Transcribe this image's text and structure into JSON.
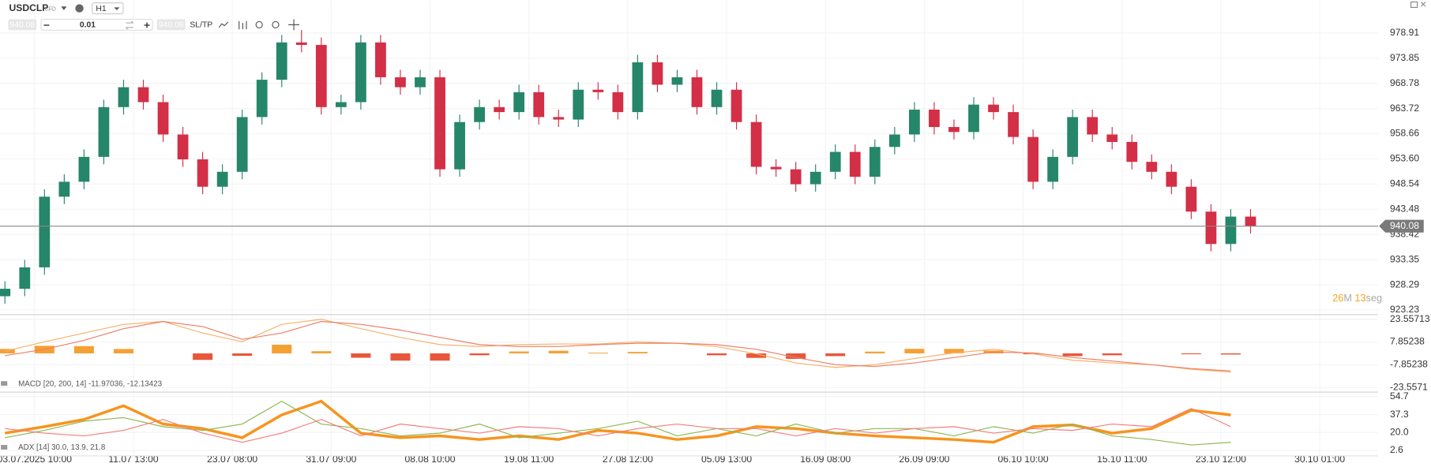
{
  "toolbar": {
    "symbol": "USDCLP",
    "instrument_type": "CFD",
    "timeframe": "H1",
    "sell_price": "940.08",
    "quantity": "0.01",
    "buy_price": "940.08",
    "sltp": "SL/TP"
  },
  "chart_data": [
    {
      "type": "candlestick",
      "x": [
        -3,
        -1,
        1,
        3,
        5,
        7,
        9,
        11,
        13,
        15,
        17,
        19,
        21,
        23,
        25,
        27,
        29,
        31,
        33,
        35,
        37,
        39,
        41,
        43,
        45,
        47,
        49,
        51,
        53,
        55,
        57,
        59,
        61,
        63,
        65,
        67,
        69,
        71,
        73,
        75,
        77,
        79,
        81,
        83,
        85,
        87,
        89,
        91,
        93,
        95,
        97,
        99,
        101,
        103,
        105,
        107,
        109,
        111,
        113,
        115,
        117,
        119,
        121,
        123
      ],
      "open": [
        926,
        927.5,
        931.8,
        946,
        949,
        954,
        964,
        968,
        965,
        958.5,
        953.5,
        948,
        951,
        962,
        969.5,
        977,
        976.5,
        964,
        965,
        977,
        970,
        968,
        970,
        951.5,
        961,
        964,
        963,
        967,
        962,
        961.5,
        967.5,
        967,
        963,
        973,
        968.5,
        970,
        964,
        967.5,
        961,
        952,
        951.5,
        948.5,
        951,
        955,
        950,
        956,
        958.5,
        963.5,
        960,
        959,
        964.5,
        963,
        958,
        949,
        954,
        962,
        958.5,
        957,
        953,
        951,
        948,
        943,
        936.5,
        942
      ],
      "high": [
        929,
        933.3,
        947.5,
        950.5,
        955.5,
        965.5,
        969.5,
        969.5,
        966.5,
        960,
        955,
        952.5,
        963.5,
        971,
        978.5,
        979.5,
        978,
        966.5,
        978.5,
        978.5,
        971.5,
        971.5,
        971.5,
        962.5,
        965.5,
        965.5,
        968.5,
        968.5,
        963.5,
        969,
        969,
        968.5,
        974.5,
        974.5,
        971.5,
        971.5,
        969,
        969,
        962.5,
        953.5,
        953,
        952.5,
        956.5,
        956.5,
        957.5,
        960,
        965,
        965,
        961.5,
        966,
        966,
        964.5,
        959.5,
        955.5,
        963.5,
        963.5,
        960,
        958.5,
        954.5,
        952.5,
        949.5,
        944.5,
        943.5,
        943.5
      ],
      "low": [
        924.5,
        926,
        930.3,
        944.5,
        947.5,
        952.5,
        962.5,
        963.5,
        957,
        952,
        946.5,
        946.5,
        949.5,
        960.5,
        968,
        975,
        962.5,
        962.5,
        963.5,
        968.5,
        966.5,
        966.5,
        950,
        950,
        959.5,
        961.5,
        961.5,
        960.5,
        960,
        960,
        965.5,
        961.5,
        961.5,
        967,
        967,
        962.5,
        962.5,
        959.5,
        950.5,
        950,
        947,
        947,
        949.5,
        948.5,
        948.5,
        954.5,
        957,
        958.5,
        957.5,
        957.5,
        961.5,
        956.5,
        947.5,
        947.5,
        952.5,
        957,
        955.5,
        951.5,
        949.5,
        946.5,
        941.5,
        935,
        935,
        938.6
      ],
      "close": [
        927.5,
        931.8,
        946,
        949,
        954,
        964,
        968,
        965,
        958.5,
        953.5,
        948,
        951,
        962,
        969.5,
        977,
        976.5,
        964,
        965,
        977,
        970,
        968,
        970,
        951.5,
        961,
        964,
        963,
        967,
        962,
        961.5,
        967.5,
        967,
        963,
        973,
        968.5,
        970,
        964,
        967.5,
        961,
        952,
        951.5,
        948.5,
        951,
        955,
        950,
        956,
        958.5,
        963.5,
        960,
        959,
        964.5,
        963,
        958,
        949,
        954,
        962,
        958.5,
        957,
        953,
        951,
        948,
        943,
        936.5,
        942,
        940.08
      ],
      "up_color": "#26866a",
      "down_color": "#d32f46",
      "ylim": [
        922.3,
        985.5
      ],
      "yticks": [
        923.23,
        928.29,
        933.35,
        938.42,
        943.48,
        948.54,
        {
          "value": 953.6,
          "label": "953.60"
        },
        958.66,
        963.72,
        968.78,
        973.85,
        978.91
      ],
      "xlim": [
        -3.5,
        135.9
      ],
      "xticks": [
        {
          "value": 0,
          "label": "03.07.2025 10:00"
        },
        {
          "value": 10,
          "label": "11.07 13:00"
        },
        {
          "value": 20,
          "label": "23.07 08:00"
        },
        {
          "value": 30,
          "label": "31.07 09:00"
        },
        {
          "value": 40,
          "label": "08.08 10:00"
        },
        {
          "value": 50,
          "label": "19.08 11:00"
        },
        {
          "value": 60,
          "label": "27.08 12:00"
        },
        {
          "value": 70,
          "label": "05.09 13:00"
        },
        {
          "value": 80,
          "label": "16.09 08:00"
        },
        {
          "value": 90,
          "label": "26.09 09:00"
        },
        {
          "value": 100,
          "label": "06.10 10:00"
        },
        {
          "value": 110,
          "label": "15.10 11:00"
        },
        {
          "value": 120,
          "label": "23.10 12:00"
        },
        {
          "value": 130,
          "label": "30.10 01:00"
        }
      ],
      "grid": true,
      "last_price": 940.08,
      "countdown": {
        "minutes": "26",
        "minutes_unit": "M",
        "seconds": "13",
        "seconds_unit": "seg"
      }
    },
    {
      "type": "macd",
      "title": "MACD [20, 200, 14] -11.97036, -12.13423",
      "x": [
        -3,
        1,
        5,
        9,
        13,
        17,
        21,
        25,
        29,
        33,
        37,
        41,
        45,
        49,
        53,
        57,
        61,
        65,
        69,
        73,
        77,
        81,
        85,
        89,
        93,
        97,
        101,
        105,
        109,
        113,
        117,
        121
      ],
      "histogram": {
        "values": [
          3.1,
          5.2,
          5,
          3,
          0,
          -4.5,
          -1.7,
          6,
          1.5,
          -3,
          -5,
          -5,
          -1.3,
          1.3,
          1.8,
          0.5,
          1,
          0,
          -1.3,
          -3.1,
          -3.8,
          -1.9,
          1.2,
          3.1,
          3.1,
          1.9,
          -0.6,
          -1.9,
          -1.3,
          0,
          -0.6,
          -0.8
        ],
        "positive_color": "#f5a033",
        "negative_color": "#e8573a"
      },
      "series": [
        {
          "color": "#f7b26a",
          "values": [
            1.5,
            8,
            14,
            20,
            22,
            14,
            8,
            20,
            23.5,
            17,
            11,
            6,
            4.7,
            6,
            6.5,
            6.5,
            8,
            7,
            4.7,
            -0.3,
            -6.6,
            -9.7,
            -7.8,
            -3.5,
            0.3,
            2.8,
            -0.3,
            -4.7,
            -6.6,
            -7.8,
            -11,
            -12.9
          ]
        },
        {
          "color": "#ee7e66",
          "values": [
            -1.6,
            2.8,
            9,
            17,
            22,
            18.5,
            9.7,
            14,
            22,
            20,
            16,
            11,
            6,
            4.7,
            4.7,
            6,
            7,
            7,
            6,
            2.8,
            -2.8,
            -7.8,
            -9,
            -6.6,
            -2.8,
            0.9,
            0.3,
            -2.8,
            -5.3,
            -7.8,
            -10.4,
            -12.1
          ]
        }
      ],
      "ylim": [
        -26.7,
        26.7
      ],
      "yticks": [
        {
          "value": -23.55713,
          "label": "-23.5571"
        },
        -7.85238,
        7.85238,
        23.55713
      ]
    },
    {
      "type": "line",
      "title": "ADX [14] 30.0, 13.9, 21.8",
      "x": [
        -3,
        1,
        5,
        9,
        13,
        17,
        21,
        25,
        29,
        33,
        37,
        41,
        45,
        49,
        53,
        57,
        61,
        65,
        69,
        73,
        77,
        81,
        85,
        89,
        93,
        97,
        101,
        105,
        109,
        113,
        117,
        121
      ],
      "series": [
        {
          "color": "#f7941d",
          "width": 3,
          "values": [
            19.4,
            25.6,
            32.6,
            45.9,
            28.2,
            23.8,
            15,
            37,
            50.3,
            19.4,
            15,
            16.7,
            13.2,
            16.7,
            13.2,
            22,
            19.4,
            13.2,
            16.7,
            25.6,
            23.8,
            19.4,
            16.7,
            15,
            13.2,
            10.5,
            25.6,
            27.3,
            19.4,
            23.8,
            41.5,
            37
          ]
        },
        {
          "color": "#8cb850",
          "width": 1,
          "values": [
            15,
            22,
            30.9,
            34.4,
            25.6,
            22,
            28.2,
            50.3,
            28.2,
            23.8,
            16.7,
            19.4,
            28.2,
            15,
            19.4,
            23.8,
            30.9,
            16.7,
            23.8,
            16.7,
            28.2,
            19.4,
            23.8,
            23.8,
            16.7,
            25.6,
            19.4,
            28.2,
            16.7,
            13.2,
            7.9,
            10.5
          ]
        },
        {
          "color": "#f47c7c",
          "width": 1,
          "values": [
            23.8,
            19.4,
            16.7,
            22,
            32.6,
            19.4,
            10.5,
            19.4,
            32.6,
            16.7,
            28.2,
            23.8,
            19.4,
            25.6,
            23.8,
            16.7,
            23.8,
            28.2,
            23.8,
            23.8,
            16.7,
            23.8,
            19.4,
            23.8,
            25.6,
            19.4,
            23.8,
            22,
            28.2,
            25.6,
            43.2,
            25.6
          ]
        }
      ],
      "ylim": [
        -2.7,
        59.1
      ],
      "yticks": [
        2.6,
        {
          "value": 20,
          "label": "20.0"
        },
        37.3,
        54.7
      ]
    }
  ]
}
